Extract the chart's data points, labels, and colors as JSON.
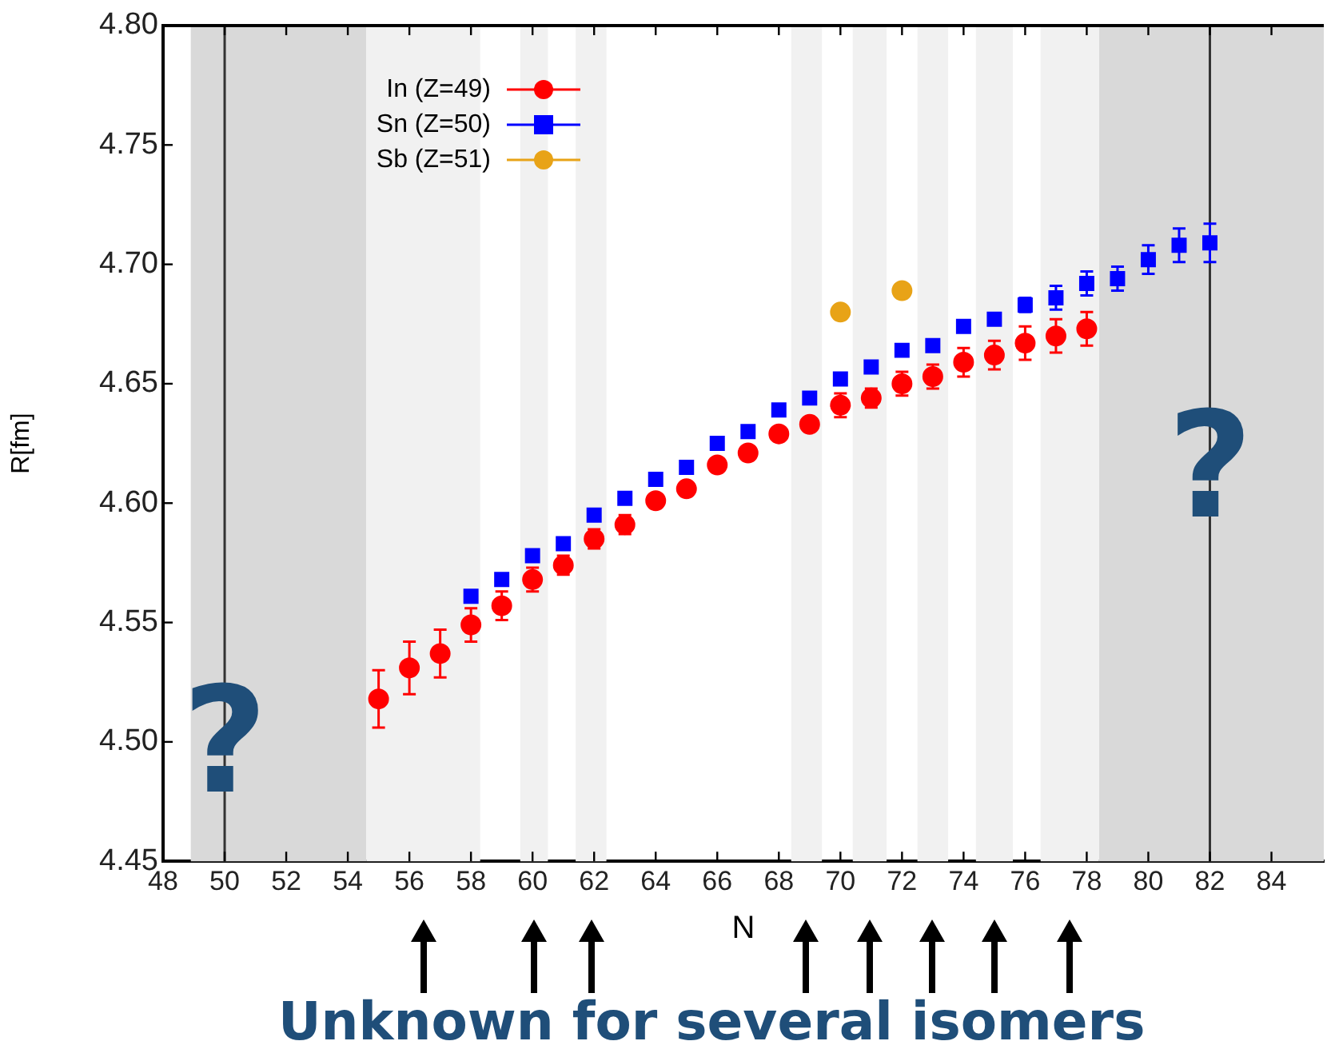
{
  "chart_data": {
    "type": "scatter",
    "xlabel": "N",
    "ylabel": "R[fm]",
    "xlim": [
      48,
      85.7
    ],
    "xticks": [
      48,
      50,
      52,
      54,
      56,
      58,
      60,
      62,
      64,
      66,
      68,
      70,
      72,
      74,
      76,
      78,
      80,
      82,
      84
    ],
    "ylim": [
      4.45,
      4.8
    ],
    "yticks": [
      4.45,
      {
        "value": 4.5,
        "label": "4.50"
      },
      4.55,
      {
        "value": 4.6,
        "label": "4.60"
      },
      4.65,
      {
        "value": 4.7,
        "label": "4.70"
      },
      4.75,
      {
        "value": 4.8,
        "label": "4.80"
      }
    ],
    "grid": false,
    "legend": "top left",
    "series": [
      {
        "name": "In (Z=49)",
        "color": "#ff0000",
        "marker": "circle",
        "x": [
          55,
          56,
          57,
          58,
          59,
          60,
          61,
          62,
          63,
          64,
          65,
          66,
          67,
          68,
          69,
          70,
          71,
          72,
          73,
          74,
          75,
          76,
          77,
          78
        ],
        "values": [
          4.518,
          4.531,
          4.537,
          4.549,
          4.557,
          4.568,
          4.574,
          4.585,
          4.591,
          4.601,
          4.606,
          4.616,
          4.621,
          4.629,
          4.633,
          4.641,
          4.644,
          4.65,
          4.653,
          4.659,
          4.662,
          4.667,
          4.67,
          4.673
        ],
        "errors": [
          0.012,
          0.011,
          0.01,
          0.007,
          0.006,
          0.005,
          0.004,
          0.004,
          0.004,
          null,
          null,
          null,
          null,
          null,
          null,
          0.005,
          0.004,
          0.005,
          0.005,
          0.006,
          0.006,
          0.007,
          0.007,
          0.007
        ]
      },
      {
        "name": "Sn (Z=50)",
        "color": "#0000ff",
        "marker": "square",
        "x": [
          58,
          59,
          60,
          61,
          62,
          63,
          64,
          65,
          66,
          67,
          68,
          69,
          70,
          71,
          72,
          73,
          74,
          75,
          76,
          77,
          78,
          79,
          80,
          81,
          82
        ],
        "values": [
          4.561,
          4.568,
          4.578,
          4.583,
          4.595,
          4.602,
          4.61,
          4.615,
          4.625,
          4.63,
          4.639,
          4.644,
          4.652,
          4.657,
          4.664,
          4.666,
          4.674,
          4.677,
          4.683,
          4.686,
          4.692,
          4.694,
          4.702,
          4.708,
          4.709
        ],
        "errors": [
          null,
          null,
          null,
          null,
          null,
          null,
          null,
          null,
          null,
          null,
          null,
          null,
          null,
          null,
          null,
          null,
          null,
          null,
          0.003,
          0.005,
          0.005,
          0.005,
          0.006,
          0.007,
          0.008
        ]
      },
      {
        "name": "Sb (Z=51)",
        "color": "#e8a317",
        "marker": "circle",
        "x": [
          70,
          72
        ],
        "values": [
          4.68,
          4.689
        ]
      }
    ],
    "bands": [
      {
        "axis": "x",
        "from": 48.9,
        "to": 54.6,
        "color": "#d9d9d9"
      },
      {
        "axis": "x",
        "from": 78.4,
        "to": 85.7,
        "color": "#d9d9d9"
      },
      {
        "axis": "x",
        "from": 54.6,
        "to": 58.3,
        "color": "#f1f1f1"
      },
      {
        "axis": "x",
        "from": 59.6,
        "to": 60.5,
        "color": "#f1f1f1"
      },
      {
        "axis": "x",
        "from": 61.4,
        "to": 62.4,
        "color": "#f1f1f1"
      },
      {
        "axis": "x",
        "from": 68.4,
        "to": 69.4,
        "color": "#f1f1f1"
      },
      {
        "axis": "x",
        "from": 70.4,
        "to": 71.5,
        "color": "#f1f1f1"
      },
      {
        "axis": "x",
        "from": 72.5,
        "to": 73.5,
        "color": "#f1f1f1"
      },
      {
        "axis": "x",
        "from": 74.4,
        "to": 75.6,
        "color": "#f1f1f1"
      },
      {
        "axis": "x",
        "from": 76.5,
        "to": 78.4,
        "color": "#f1f1f1"
      }
    ],
    "ref_lines": [
      {
        "axis": "x",
        "value": 50,
        "color": "#333333"
      },
      {
        "axis": "x",
        "value": 82,
        "color": "#333333"
      }
    ],
    "annotations": [
      {
        "text": "?",
        "x": 50,
        "y": 4.5
      },
      {
        "text": "?",
        "x": 82,
        "y": 4.615
      },
      "Unknown for several isomers"
    ]
  }
}
